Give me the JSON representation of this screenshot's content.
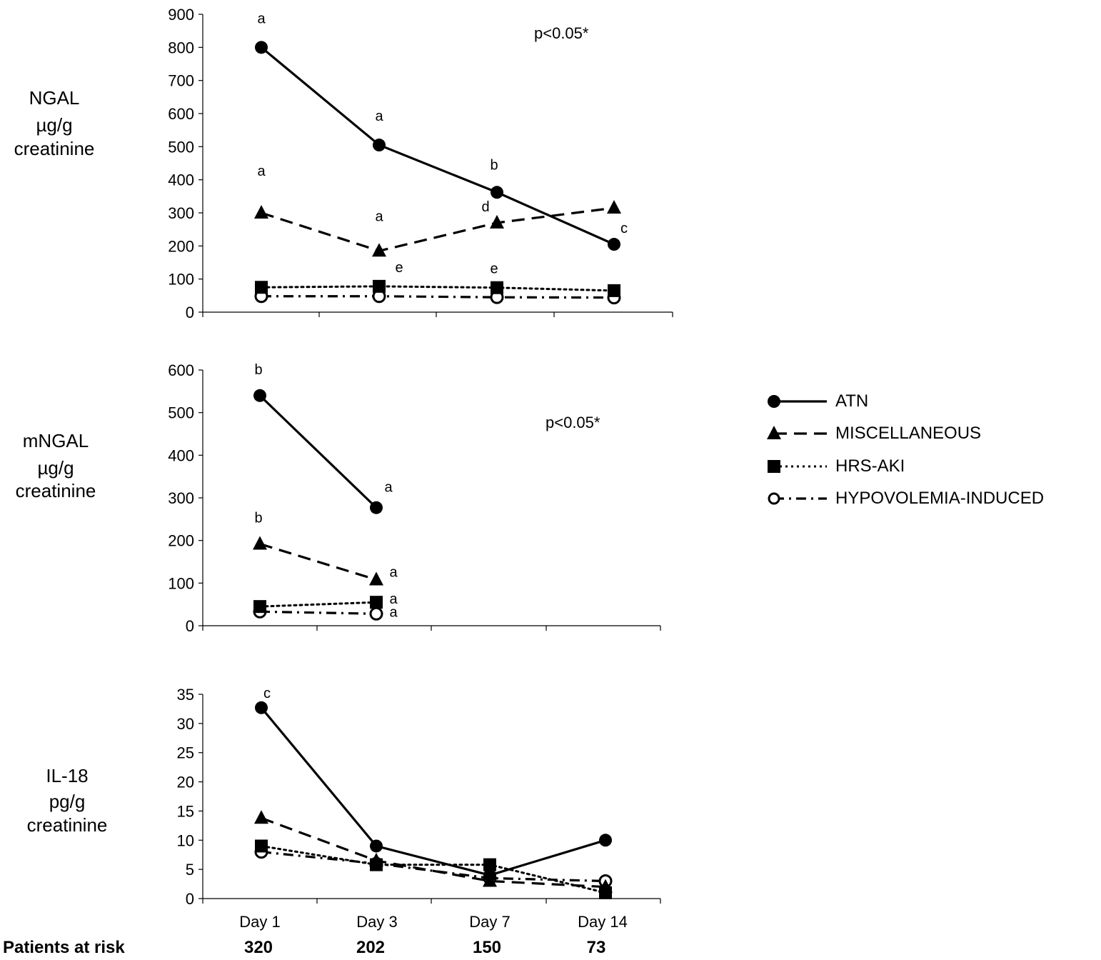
{
  "x_categories": [
    "Day 1",
    "Day 3",
    "Day 7",
    "Day 14"
  ],
  "patients_at_risk": {
    "label": "Patients at risk",
    "values": [
      "320",
      "202",
      "150",
      "73"
    ]
  },
  "legend": [
    {
      "key": "atn",
      "label": "ATN"
    },
    {
      "key": "misc",
      "label": "MISCELLANEOUS"
    },
    {
      "key": "hrs",
      "label": "HRS-AKI"
    },
    {
      "key": "hypo",
      "label": "HYPOVOLEMIA-INDUCED"
    }
  ],
  "panels": {
    "ngal": {
      "ylabel_lines": [
        "NGAL",
        "µg/g",
        "creatinine"
      ],
      "pvalue": "p<0.05*"
    },
    "mngal": {
      "ylabel_lines": [
        "mNGAL",
        "µg/g",
        "creatinine"
      ],
      "pvalue": "p<0.05*"
    },
    "il18": {
      "ylabel_lines": [
        "IL-18",
        "pg/g",
        "creatinine"
      ]
    }
  },
  "chart_data": [
    {
      "type": "line",
      "ylabel": "NGAL µg/g creatinine",
      "ylim": [
        0,
        900
      ],
      "yticks": [
        0,
        100,
        200,
        300,
        400,
        500,
        600,
        700,
        800,
        900
      ],
      "categories": [
        "Day 1",
        "Day 3",
        "Day 7",
        "Day 14"
      ],
      "annotations": [
        "p<0.05*"
      ],
      "series": [
        {
          "name": "ATN",
          "key": "atn",
          "values": [
            800,
            505,
            362,
            205
          ],
          "labels": [
            "a",
            "a",
            "b",
            "c"
          ]
        },
        {
          "name": "MISCELLANEOUS",
          "key": "misc",
          "values": [
            300,
            185,
            270,
            315
          ],
          "labels": [
            "a",
            "a",
            "d",
            ""
          ]
        },
        {
          "name": "HRS-AKI",
          "key": "hrs",
          "values": [
            75,
            78,
            74,
            65
          ],
          "labels": [
            "",
            "e",
            "e",
            ""
          ]
        },
        {
          "name": "HYPOVOLEMIA-INDUCED",
          "key": "hypo",
          "values": [
            48,
            48,
            45,
            44
          ],
          "labels": [
            "",
            "",
            "",
            ""
          ]
        }
      ]
    },
    {
      "type": "line",
      "ylabel": "mNGAL µg/g creatinine",
      "ylim": [
        0,
        600
      ],
      "yticks": [
        0,
        100,
        200,
        300,
        400,
        500,
        600
      ],
      "categories": [
        "Day 1",
        "Day 3",
        "Day 7",
        "Day 14"
      ],
      "annotations": [
        "p<0.05*"
      ],
      "series": [
        {
          "name": "ATN",
          "key": "atn",
          "values": [
            540,
            277,
            null,
            null
          ],
          "labels": [
            "b",
            "a",
            "",
            ""
          ]
        },
        {
          "name": "MISCELLANEOUS",
          "key": "misc",
          "values": [
            192,
            108,
            null,
            null
          ],
          "labels": [
            "b",
            "a",
            "",
            ""
          ]
        },
        {
          "name": "HRS-AKI",
          "key": "hrs",
          "values": [
            45,
            55,
            null,
            null
          ],
          "labels": [
            "",
            "a",
            "",
            ""
          ]
        },
        {
          "name": "HYPOVOLEMIA-INDUCED",
          "key": "hypo",
          "values": [
            33,
            28,
            null,
            null
          ],
          "labels": [
            "",
            "a",
            "",
            ""
          ]
        }
      ]
    },
    {
      "type": "line",
      "ylabel": "IL-18 pg/g creatinine",
      "ylim": [
        0,
        35
      ],
      "yticks": [
        0,
        5,
        10,
        15,
        20,
        25,
        30,
        35
      ],
      "categories": [
        "Day 1",
        "Day 3",
        "Day 7",
        "Day 14"
      ],
      "series": [
        {
          "name": "ATN",
          "key": "atn",
          "values": [
            32.7,
            9,
            4,
            10
          ],
          "labels": [
            "c",
            "",
            "",
            ""
          ]
        },
        {
          "name": "MISCELLANEOUS",
          "key": "misc",
          "values": [
            13.8,
            6.5,
            3,
            2
          ],
          "labels": [
            "",
            "",
            "",
            ""
          ]
        },
        {
          "name": "HRS-AKI",
          "key": "hrs",
          "values": [
            9,
            5.8,
            5.8,
            1
          ],
          "labels": [
            "",
            "",
            "",
            ""
          ]
        },
        {
          "name": "HYPOVOLEMIA-INDUCED",
          "key": "hypo",
          "values": [
            8,
            6,
            3.5,
            3
          ],
          "labels": [
            "",
            "",
            "",
            ""
          ]
        }
      ]
    }
  ]
}
